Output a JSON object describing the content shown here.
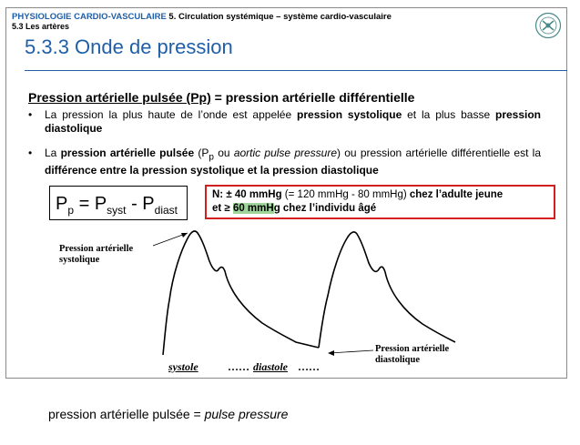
{
  "header": {
    "course": "PHYSIOLOGIE CARDIO-VASCULAIRE",
    "chapter": "5. Circulation systémique – système cardio-vasculaire",
    "subsection": "5.3 Les artères"
  },
  "title": "5.3.3 Onde de pression",
  "section": {
    "underlined": "Pression artérielle pulsée (Pp)",
    "rest": "= pression artérielle différentielle"
  },
  "bullet1": {
    "t1": "La pression la plus haute de l’onde est appelée ",
    "b1": "pression systolique",
    "t2": " et la plus basse ",
    "b2": "pression diastolique"
  },
  "bullet2": {
    "t1": "La ",
    "b1": "pression artérielle pulsée",
    "t2": " (P",
    "sub": "p",
    "t3": " ou ",
    "i1": "aortic pulse pressure",
    "t4": ") ou pression artérielle différentielle est la ",
    "b2": "différence entre la pression systolique et la pression diastolique"
  },
  "formula": {
    "p": "P",
    "p_sub": "p",
    "eq": " = P",
    "syst_sub": "syst",
    "minus": " - P",
    "diast_sub": "diast"
  },
  "note": {
    "b1": "N: ± 40 mmHg",
    "t1": " (= 120 mmHg - 80 mmHg) ",
    "b2": "chez l’adulte jeune",
    "b3": "et ≥ ",
    "hl": "60 mmH",
    "b4": "g chez l’individu âgé"
  },
  "labels": {
    "systolic": [
      "Pression artérielle",
      "systolique"
    ],
    "diastolic": [
      "Pression artérielle",
      "diastolique"
    ],
    "systole": "systole",
    "diastole": "diastole",
    "dots_mid": "……",
    "dots_end": "……"
  },
  "footer": {
    "plain": "pression artérielle pulsée = ",
    "italic": "pulse pressure"
  },
  "colors": {
    "accent": "#1f5fa8",
    "note_border": "#d21f1f",
    "highlight": "#9fd49a"
  }
}
